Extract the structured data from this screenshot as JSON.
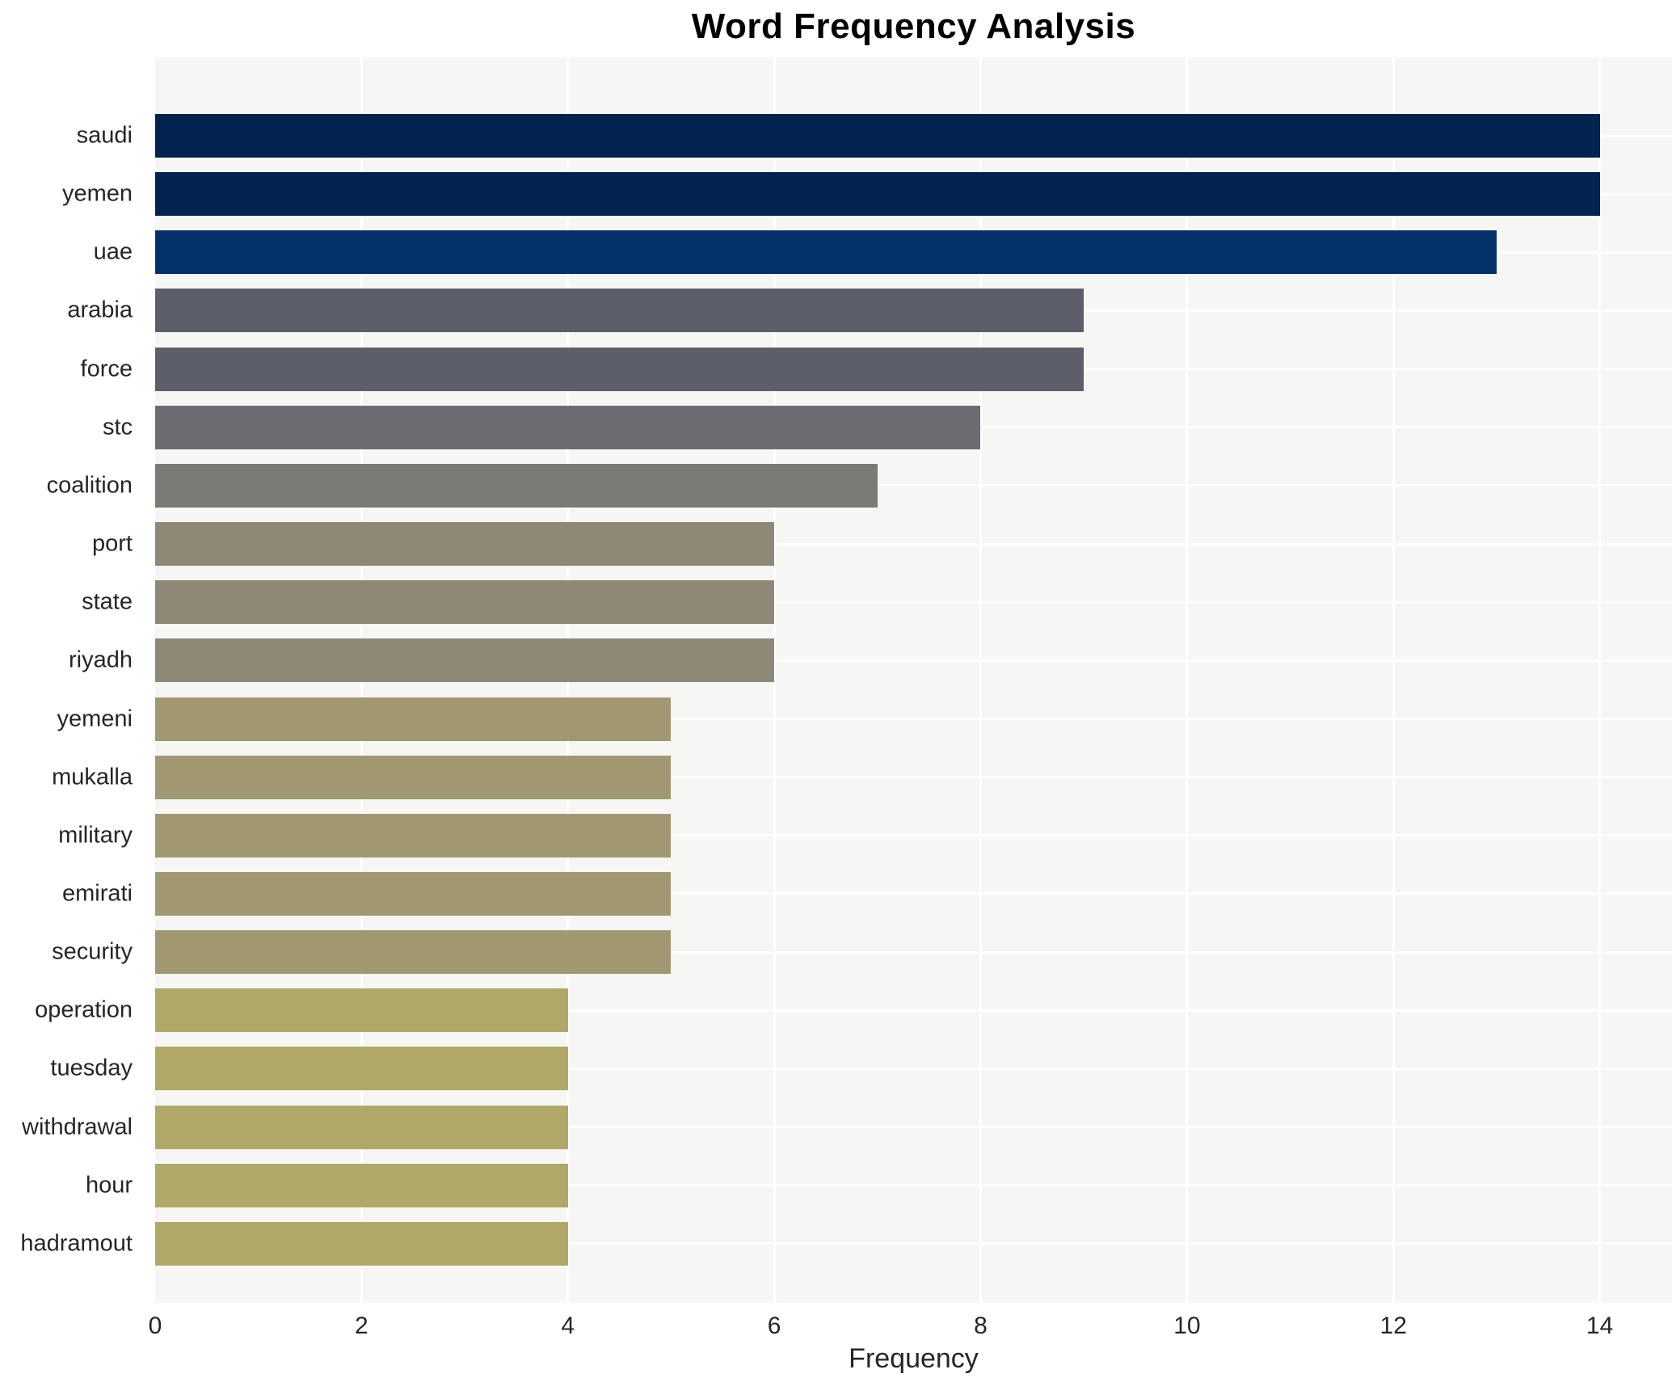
{
  "chart_data": {
    "type": "bar",
    "orientation": "horizontal",
    "title": "Word Frequency Analysis",
    "xlabel": "Frequency",
    "ylabel": "",
    "categories": [
      "saudi",
      "yemen",
      "uae",
      "arabia",
      "force",
      "stc",
      "coalition",
      "port",
      "state",
      "riyadh",
      "yemeni",
      "mukalla",
      "military",
      "emirati",
      "security",
      "operation",
      "tuesday",
      "withdrawal",
      "hour",
      "hadramout"
    ],
    "values": [
      14,
      14,
      13,
      9,
      9,
      8,
      7,
      6,
      6,
      6,
      5,
      5,
      5,
      5,
      5,
      4,
      4,
      4,
      4,
      4
    ],
    "bar_colors": [
      "#022350",
      "#022350",
      "#04306c",
      "#5c5f6a",
      "#5c5f6a",
      "#6c6d72",
      "#7b7a74",
      "#8e8977",
      "#8e8977",
      "#8e8977",
      "#a19872",
      "#a19872",
      "#a19872",
      "#a19872",
      "#a19872",
      "#b0a867",
      "#b0a867",
      "#b0a867",
      "#b0a867",
      "#b0a867"
    ],
    "xticks": [
      0,
      2,
      4,
      6,
      8,
      10,
      12,
      14
    ],
    "xlim": [
      0,
      14.7
    ],
    "grid": true,
    "legend_position": "none",
    "style": {
      "plot_background": "#f6f6f5",
      "page_background": "#ffffff",
      "gridline_color": "#ffffff",
      "tick_text_color": "#262626",
      "title_color": "#000000"
    }
  }
}
